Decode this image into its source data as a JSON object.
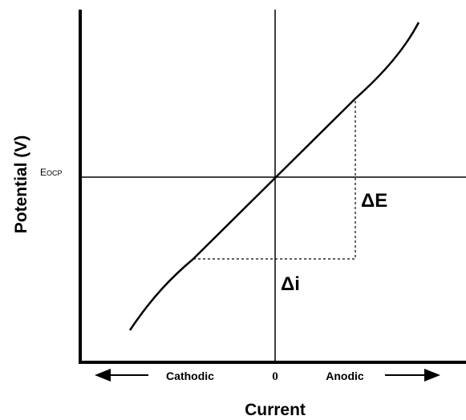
{
  "labels": {
    "y_axis": "Potential (V)",
    "eocp_main": "E",
    "eocp_sub": "OCP",
    "x_axis": "Current",
    "cathodic": "Cathodic",
    "zero": "0",
    "anodic": "Anodic",
    "delta_e": "ΔE",
    "delta_i": "Δi"
  }
}
